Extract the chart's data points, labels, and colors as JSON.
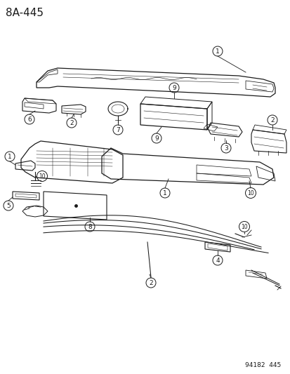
{
  "title": "8A-445",
  "subtitle": "94182  445",
  "bg_color": "#ffffff",
  "line_color": "#1a1a1a",
  "title_fontsize": 11,
  "subtitle_fontsize": 6.5,
  "figsize": [
    4.14,
    5.33
  ],
  "dpi": 100
}
